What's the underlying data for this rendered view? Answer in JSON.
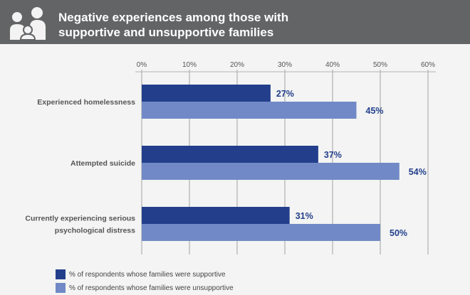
{
  "header": {
    "title_line1": "Negative experiences among those with",
    "title_line2": "supportive and unsupportive families",
    "icon": "family-icon"
  },
  "colors": {
    "supportive": "#233f8c",
    "unsupportive": "#7189c6",
    "header": "#636466",
    "grid": "#b5b5b5",
    "label": "#555555"
  },
  "chart_data": {
    "type": "bar",
    "orientation": "horizontal",
    "categories": [
      "Experienced homelessness",
      "Attempted suicide",
      "Currently experiencing serious psychological distress"
    ],
    "category_lines": [
      [
        "Experienced homelessness"
      ],
      [
        "Attempted suicide"
      ],
      [
        "Currently experiencing serious",
        "psychological distress"
      ]
    ],
    "series": [
      {
        "name": "% of respondents whose families were supportive",
        "values": [
          27,
          37,
          31
        ],
        "labels": [
          "27%",
          "37%",
          "31%"
        ]
      },
      {
        "name": "% of respondents whose families were unsupportive",
        "values": [
          45,
          54,
          50
        ],
        "labels": [
          "45%",
          "54%",
          "50%"
        ]
      }
    ],
    "xlim": [
      0,
      60
    ],
    "xticks": [
      "0%",
      "10%",
      "20%",
      "30%",
      "40%",
      "50%",
      "60%"
    ],
    "grid": true,
    "legend_placement": "bottom-left"
  }
}
